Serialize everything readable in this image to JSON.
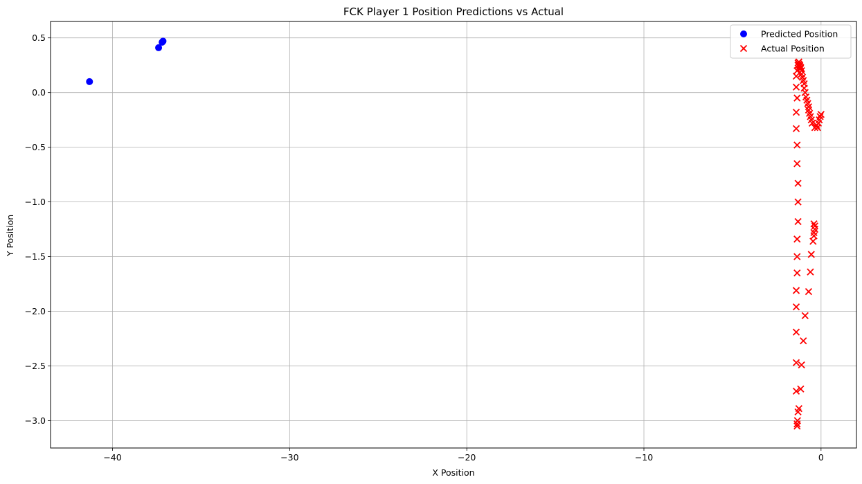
{
  "chart_data": {
    "type": "scatter",
    "title": "FCK Player 1 Position Predictions vs Actual",
    "xlabel": "X Position",
    "ylabel": "Y Position",
    "xlim": [
      -43.5,
      2
    ],
    "ylim": [
      -3.25,
      0.65
    ],
    "xticks": [
      -40,
      -30,
      -20,
      -10,
      0
    ],
    "xtick_labels": [
      "−40",
      "−30",
      "−20",
      "−10",
      "0"
    ],
    "yticks": [
      0.5,
      0.0,
      -0.5,
      -1.0,
      -1.5,
      -2.0,
      -2.5,
      -3.0
    ],
    "ytick_labels": [
      "0.5",
      "0.0",
      "−0.5",
      "−1.0",
      "−1.5",
      "−2.0",
      "−2.5",
      "−3.0"
    ],
    "grid": true,
    "legend_position": "top-right",
    "series": [
      {
        "name": "Predicted Position",
        "marker": "circle",
        "color": "#0000ff",
        "points": [
          [
            -41.3,
            0.1
          ],
          [
            -37.4,
            0.41
          ],
          [
            -37.2,
            0.46
          ],
          [
            -37.15,
            0.47
          ]
        ]
      },
      {
        "name": "Actual Position",
        "marker": "x",
        "color": "#ff0000",
        "points": [
          [
            -1.35,
            -3.05
          ],
          [
            -1.35,
            -3.03
          ],
          [
            -1.33,
            -3.0
          ],
          [
            -1.3,
            -2.92
          ],
          [
            -1.25,
            -2.89
          ],
          [
            -1.4,
            -2.73
          ],
          [
            -1.15,
            -2.71
          ],
          [
            -1.1,
            -2.49
          ],
          [
            -1.4,
            -2.47
          ],
          [
            -1.0,
            -2.27
          ],
          [
            -1.4,
            -2.19
          ],
          [
            -0.9,
            -2.04
          ],
          [
            -1.4,
            -1.96
          ],
          [
            -0.7,
            -1.82
          ],
          [
            -1.4,
            -1.81
          ],
          [
            -0.6,
            -1.64
          ],
          [
            -1.35,
            -1.65
          ],
          [
            -0.55,
            -1.48
          ],
          [
            -1.35,
            -1.5
          ],
          [
            -0.45,
            -1.36
          ],
          [
            -1.35,
            -1.34
          ],
          [
            -0.4,
            -1.31
          ],
          [
            -0.4,
            -1.28
          ],
          [
            -0.35,
            -1.25
          ],
          [
            -0.35,
            -1.22
          ],
          [
            -0.4,
            -1.2
          ],
          [
            -1.3,
            -1.18
          ],
          [
            -1.3,
            -1.0
          ],
          [
            -1.3,
            -0.83
          ],
          [
            -1.35,
            -0.65
          ],
          [
            -1.35,
            -0.48
          ],
          [
            -1.4,
            -0.33
          ],
          [
            -0.35,
            -0.32
          ],
          [
            -0.2,
            -0.32
          ],
          [
            -0.25,
            -0.3
          ],
          [
            -0.5,
            -0.28
          ],
          [
            -0.15,
            -0.28
          ],
          [
            -0.1,
            -0.25
          ],
          [
            -0.55,
            -0.25
          ],
          [
            -0.05,
            -0.22
          ],
          [
            -0.6,
            -0.22
          ],
          [
            0.0,
            -0.2
          ],
          [
            -0.65,
            -0.19
          ],
          [
            -1.4,
            -0.18
          ],
          [
            -0.7,
            -0.16
          ],
          [
            -0.7,
            -0.13
          ],
          [
            -0.75,
            -0.1
          ],
          [
            -0.8,
            -0.07
          ],
          [
            -0.85,
            -0.04
          ],
          [
            -1.35,
            -0.05
          ],
          [
            -0.9,
            0.0
          ],
          [
            -0.95,
            0.04
          ],
          [
            -1.4,
            0.05
          ],
          [
            -0.95,
            0.08
          ],
          [
            -1.0,
            0.11
          ],
          [
            -1.05,
            0.14
          ],
          [
            -1.4,
            0.15
          ],
          [
            -1.1,
            0.17
          ],
          [
            -1.1,
            0.2
          ],
          [
            -1.35,
            0.2
          ],
          [
            -1.15,
            0.22
          ],
          [
            -1.2,
            0.24
          ],
          [
            -1.3,
            0.25
          ],
          [
            -1.25,
            0.26
          ],
          [
            -1.25,
            0.28
          ],
          [
            -1.3,
            0.27
          ],
          [
            -1.2,
            0.25
          ],
          [
            -1.15,
            0.23
          ]
        ]
      }
    ]
  }
}
